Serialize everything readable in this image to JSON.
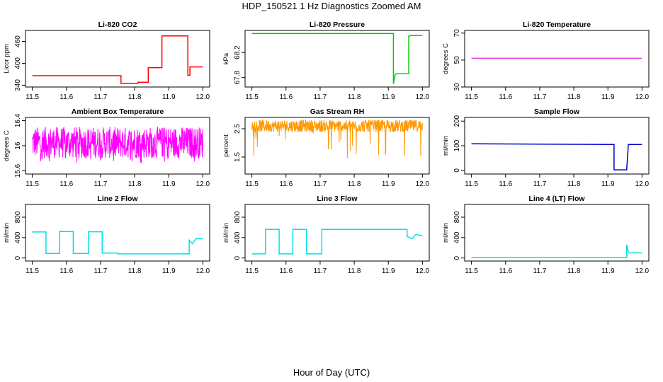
{
  "figure": {
    "title": "HDP_150521  1 Hz Diagnostics Zoomed AM",
    "xlabel": "Hour of Day (UTC)"
  },
  "chart_data": [
    {
      "type": "line",
      "title": "Li-820 CO2",
      "ylabel": "Licor ppm",
      "color": "#ff0000",
      "xlim": [
        11.5,
        12.0
      ],
      "ylim": [
        335,
        490
      ],
      "xticks": [
        "11.5",
        "11.6",
        "11.7",
        "11.8",
        "11.9",
        "12.0"
      ],
      "yticks": [
        340,
        400,
        460
      ],
      "series": [
        {
          "x": [
            11.5,
            11.76,
            11.76,
            11.81,
            11.81,
            11.84,
            11.84,
            11.88,
            11.88,
            11.956,
            11.956,
            11.962,
            11.962,
            12.0
          ],
          "y": [
            366,
            366,
            345,
            345,
            348,
            348,
            388,
            388,
            475,
            475,
            367,
            367,
            390,
            390
          ]
        }
      ]
    },
    {
      "type": "line",
      "title": "Li-820 Pressure",
      "ylabel": "kPa",
      "color": "#00cc00",
      "xlim": [
        11.5,
        12.0
      ],
      "ylim": [
        67.65,
        68.55
      ],
      "xticks": [
        "11.5",
        "11.6",
        "11.7",
        "11.8",
        "11.9",
        "12.0"
      ],
      "yticks": [
        67.8,
        68.2
      ],
      "series": [
        {
          "x": [
            11.5,
            11.915,
            11.915,
            11.92,
            11.925,
            11.96,
            11.96,
            11.97,
            11.97,
            12.0
          ],
          "y": [
            68.5,
            68.5,
            67.7,
            67.85,
            67.86,
            67.86,
            68.46,
            68.47,
            68.47,
            68.47
          ]
        }
      ]
    },
    {
      "type": "line",
      "title": "Li-820 Temperature",
      "ylabel": "degrees C",
      "color": "#e040e0",
      "xlim": [
        11.5,
        12.0
      ],
      "ylim": [
        30,
        72
      ],
      "xticks": [
        "11.5",
        "11.6",
        "11.7",
        "11.8",
        "11.9",
        "12.0"
      ],
      "yticks": [
        30,
        50,
        70
      ],
      "series": [
        {
          "x": [
            11.5,
            12.0
          ],
          "y": [
            51.3,
            51.3
          ]
        }
      ]
    },
    {
      "type": "line",
      "title": "Ambient Box Temperature",
      "ylabel": "degrees C",
      "color": "#ff00ff",
      "xlim": [
        11.5,
        12.0
      ],
      "ylim": [
        15.55,
        16.45
      ],
      "xticks": [
        "11.5",
        "11.6",
        "11.7",
        "11.8",
        "11.9",
        "12.0"
      ],
      "yticks": [
        15.6,
        16.0,
        16.4
      ],
      "series": [
        {
          "x": [
            11.5,
            12.0
          ],
          "y": [
            16.05,
            16.05
          ],
          "noise_range": [
            15.72,
            16.35
          ]
        }
      ]
    },
    {
      "type": "line",
      "title": "Gas Stream RH",
      "ylabel": "percent",
      "color": "#ff9900",
      "xlim": [
        11.5,
        12.0
      ],
      "ylim": [
        0.9,
        2.9
      ],
      "xticks": [
        "11.5",
        "11.6",
        "11.7",
        "11.8",
        "11.9",
        "12.0"
      ],
      "yticks": [
        1.5,
        2.5
      ],
      "series": [
        {
          "x": [
            11.5,
            12.0
          ],
          "y": [
            2.6,
            2.6
          ],
          "noise_range": [
            2.3,
            2.85
          ]
        }
      ]
    },
    {
      "type": "line",
      "title": "Sample Flow",
      "ylabel": "ml/min",
      "color": "#0000cc",
      "xlim": [
        11.5,
        12.0
      ],
      "ylim": [
        -15,
        215
      ],
      "xticks": [
        "11.5",
        "11.6",
        "11.7",
        "11.8",
        "11.9",
        "12.0"
      ],
      "yticks": [
        0,
        100,
        200
      ],
      "series": [
        {
          "x": [
            11.5,
            11.918,
            11.918,
            11.955,
            11.955,
            11.96,
            11.96,
            12.0
          ],
          "y": [
            108,
            105,
            2,
            2,
            2,
            105,
            105,
            105
          ]
        }
      ]
    },
    {
      "type": "line",
      "title": "Line 2 Flow",
      "ylabel": "ml/min",
      "color": "#00e0e8",
      "xlim": [
        11.5,
        12.0
      ],
      "ylim": [
        -60,
        1050
      ],
      "xticks": [
        "11.5",
        "11.6",
        "11.7",
        "11.8",
        "11.9",
        "12.0"
      ],
      "yticks": [
        0,
        400,
        800
      ],
      "series": [
        {
          "x": [
            11.5,
            11.54,
            11.54,
            11.58,
            11.58,
            11.62,
            11.62,
            11.665,
            11.665,
            11.705,
            11.705,
            11.75,
            11.75,
            11.96,
            11.96,
            11.97,
            11.98,
            12.0
          ],
          "y": [
            510,
            510,
            90,
            90,
            520,
            520,
            90,
            90,
            515,
            515,
            95,
            95,
            80,
            80,
            350,
            280,
            380,
            375
          ]
        }
      ]
    },
    {
      "type": "line",
      "title": "Line 3 Flow",
      "ylabel": "ml/min",
      "color": "#00e0e8",
      "xlim": [
        11.5,
        12.0
      ],
      "ylim": [
        -60,
        1050
      ],
      "xticks": [
        "11.5",
        "11.6",
        "11.7",
        "11.8",
        "11.9",
        "12.0"
      ],
      "yticks": [
        0,
        400,
        800
      ],
      "series": [
        {
          "x": [
            11.5,
            11.54,
            11.54,
            11.58,
            11.58,
            11.62,
            11.62,
            11.66,
            11.66,
            11.705,
            11.705,
            11.955,
            11.955,
            11.97,
            11.98,
            12.0
          ],
          "y": [
            80,
            80,
            560,
            560,
            80,
            80,
            560,
            560,
            80,
            80,
            560,
            560,
            420,
            380,
            460,
            440
          ]
        }
      ]
    },
    {
      "type": "line",
      "title": "Line 4 (LT) Flow",
      "ylabel": "ml/min",
      "color": "#00e0e8",
      "xlim": [
        11.5,
        12.0
      ],
      "ylim": [
        -60,
        1050
      ],
      "xticks": [
        "11.5",
        "11.6",
        "11.7",
        "11.8",
        "11.9",
        "12.0"
      ],
      "yticks": [
        0,
        400,
        800
      ],
      "series": [
        {
          "x": [
            11.5,
            11.955,
            11.955,
            11.96,
            11.965,
            12.0
          ],
          "y": [
            5,
            5,
            260,
            120,
            100,
            100
          ]
        }
      ]
    }
  ]
}
